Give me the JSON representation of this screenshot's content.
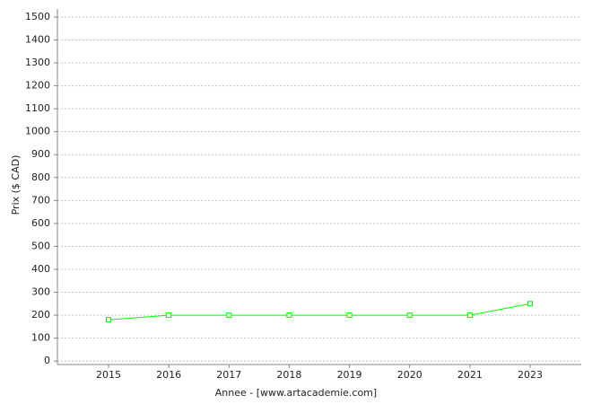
{
  "chart_data": {
    "type": "line",
    "x_label": "Annee - [www.artacademie.com]",
    "y_label": "Prix ($ CAD)",
    "categories": [
      "2015",
      "2016",
      "2017",
      "2018",
      "2019",
      "2020",
      "2021",
      "2023"
    ],
    "series": [
      {
        "name": "Prix",
        "color": "#00ff00",
        "values": [
          180,
          200,
          200,
          200,
          200,
          200,
          200,
          250
        ]
      }
    ],
    "ylim": [
      -15,
      1535
    ],
    "yticks": [
      0,
      100,
      200,
      300,
      400,
      500,
      600,
      700,
      800,
      900,
      1000,
      1100,
      1200,
      1300,
      1400,
      1500
    ],
    "grid": true
  }
}
